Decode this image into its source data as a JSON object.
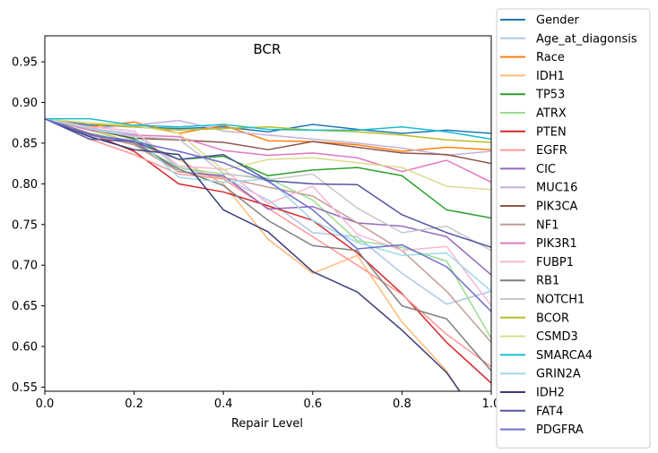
{
  "chart_data": {
    "type": "line",
    "title": "BCR",
    "xlabel": "Repair Level",
    "ylabel": "",
    "xlim": [
      0.0,
      1.0
    ],
    "ylim": [
      0.545,
      0.982
    ],
    "xticks": [
      "0.0",
      "0.2",
      "0.4",
      "0.6",
      "0.8",
      "1.0"
    ],
    "yticks": [
      "0.55",
      "0.60",
      "0.65",
      "0.70",
      "0.75",
      "0.80",
      "0.85",
      "0.90",
      "0.95"
    ],
    "grid": false,
    "legend_position": "right-outside",
    "x": [
      0.0,
      0.1,
      0.2,
      0.3,
      0.4,
      0.5,
      0.6,
      0.7,
      0.8,
      0.9,
      1.0
    ],
    "series": [
      {
        "name": "Gender",
        "color": "#1f77b4",
        "values": [
          0.88,
          0.872,
          0.87,
          0.868,
          0.87,
          0.864,
          0.873,
          0.867,
          0.862,
          0.866,
          0.862
        ]
      },
      {
        "name": "Age_at_diagonsis",
        "color": "#aec7e8",
        "values": [
          0.88,
          0.868,
          0.862,
          0.82,
          0.808,
          0.78,
          0.74,
          0.735,
          0.69,
          0.652,
          0.668
        ]
      },
      {
        "name": "Race",
        "color": "#ff7f0e",
        "values": [
          0.88,
          0.87,
          0.876,
          0.862,
          0.872,
          0.853,
          0.852,
          0.848,
          0.84,
          0.845,
          0.842
        ]
      },
      {
        "name": "IDH1",
        "color": "#ffbb78",
        "values": [
          0.88,
          0.868,
          0.85,
          0.83,
          0.8,
          0.732,
          0.69,
          0.712,
          0.63,
          0.57,
          0.48
        ]
      },
      {
        "name": "TP53",
        "color": "#2ca02c",
        "values": [
          0.88,
          0.868,
          0.855,
          0.83,
          0.834,
          0.81,
          0.817,
          0.82,
          0.81,
          0.768,
          0.758
        ]
      },
      {
        "name": "ATRX",
        "color": "#98df8a",
        "values": [
          0.88,
          0.866,
          0.85,
          0.82,
          0.812,
          0.807,
          0.78,
          0.73,
          0.722,
          0.705,
          0.61
        ]
      },
      {
        "name": "PTEN",
        "color": "#d62728",
        "values": [
          0.88,
          0.862,
          0.84,
          0.8,
          0.79,
          0.773,
          0.755,
          0.715,
          0.665,
          0.605,
          0.555
        ]
      },
      {
        "name": "EGFR",
        "color": "#ff9896",
        "values": [
          0.88,
          0.855,
          0.836,
          0.812,
          0.806,
          0.77,
          0.735,
          0.7,
          0.664,
          0.615,
          0.575
        ]
      },
      {
        "name": "CIC",
        "color": "#9467bd",
        "values": [
          0.88,
          0.86,
          0.853,
          0.815,
          0.81,
          0.769,
          0.772,
          0.752,
          0.748,
          0.735,
          0.688
        ]
      },
      {
        "name": "MUC16",
        "color": "#c5b0d5",
        "values": [
          0.88,
          0.868,
          0.872,
          0.878,
          0.865,
          0.86,
          0.855,
          0.85,
          0.844,
          0.835,
          0.84
        ]
      },
      {
        "name": "PIK3CA",
        "color": "#8c564b",
        "values": [
          0.88,
          0.868,
          0.856,
          0.854,
          0.851,
          0.842,
          0.852,
          0.845,
          0.838,
          0.836,
          0.825
        ]
      },
      {
        "name": "NF1",
        "color": "#c49c94",
        "values": [
          0.88,
          0.86,
          0.848,
          0.815,
          0.808,
          0.796,
          0.785,
          0.752,
          0.718,
          0.668,
          0.605
        ]
      },
      {
        "name": "PIK3R1",
        "color": "#e377c2",
        "values": [
          0.88,
          0.866,
          0.86,
          0.858,
          0.841,
          0.835,
          0.838,
          0.832,
          0.815,
          0.829,
          0.802
        ]
      },
      {
        "name": "FUBP1",
        "color": "#f7b6d2",
        "values": [
          0.88,
          0.87,
          0.865,
          0.822,
          0.818,
          0.776,
          0.797,
          0.738,
          0.718,
          0.723,
          0.65
        ]
      },
      {
        "name": "RB1",
        "color": "#7f7f7f",
        "values": [
          0.88,
          0.862,
          0.85,
          0.818,
          0.798,
          0.755,
          0.724,
          0.718,
          0.65,
          0.634,
          0.57
        ]
      },
      {
        "name": "NOTCH1",
        "color": "#c7c7c7",
        "values": [
          0.88,
          0.868,
          0.858,
          0.855,
          0.813,
          0.805,
          0.812,
          0.77,
          0.74,
          0.748,
          0.718
        ]
      },
      {
        "name": "BCOR",
        "color": "#bcbd22",
        "values": [
          0.88,
          0.874,
          0.87,
          0.866,
          0.868,
          0.87,
          0.866,
          0.864,
          0.86,
          0.854,
          0.851
        ]
      },
      {
        "name": "CSMD3",
        "color": "#dbdb8d",
        "values": [
          0.88,
          0.875,
          0.872,
          0.862,
          0.817,
          0.83,
          0.832,
          0.826,
          0.82,
          0.797,
          0.793
        ]
      },
      {
        "name": "SMARCA4",
        "color": "#17becf",
        "values": [
          0.88,
          0.88,
          0.872,
          0.87,
          0.873,
          0.867,
          0.866,
          0.866,
          0.87,
          0.864,
          0.855
        ]
      },
      {
        "name": "GRIN2A",
        "color": "#9edae5",
        "values": [
          0.88,
          0.868,
          0.858,
          0.808,
          0.802,
          0.806,
          0.755,
          0.728,
          0.712,
          0.715,
          0.668
        ]
      },
      {
        "name": "IDH2",
        "color": "#393b79",
        "values": [
          0.88,
          0.858,
          0.842,
          0.836,
          0.768,
          0.741,
          0.692,
          0.667,
          0.62,
          0.568,
          0.49
        ]
      },
      {
        "name": "FAT4",
        "color": "#5254a3",
        "values": [
          0.88,
          0.855,
          0.852,
          0.83,
          0.836,
          0.804,
          0.8,
          0.799,
          0.762,
          0.74,
          0.722
        ]
      },
      {
        "name": "PDGFRA",
        "color": "#6b6ecf",
        "values": [
          0.88,
          0.86,
          0.852,
          0.84,
          0.826,
          0.803,
          0.768,
          0.72,
          0.725,
          0.698,
          0.643
        ]
      }
    ]
  }
}
